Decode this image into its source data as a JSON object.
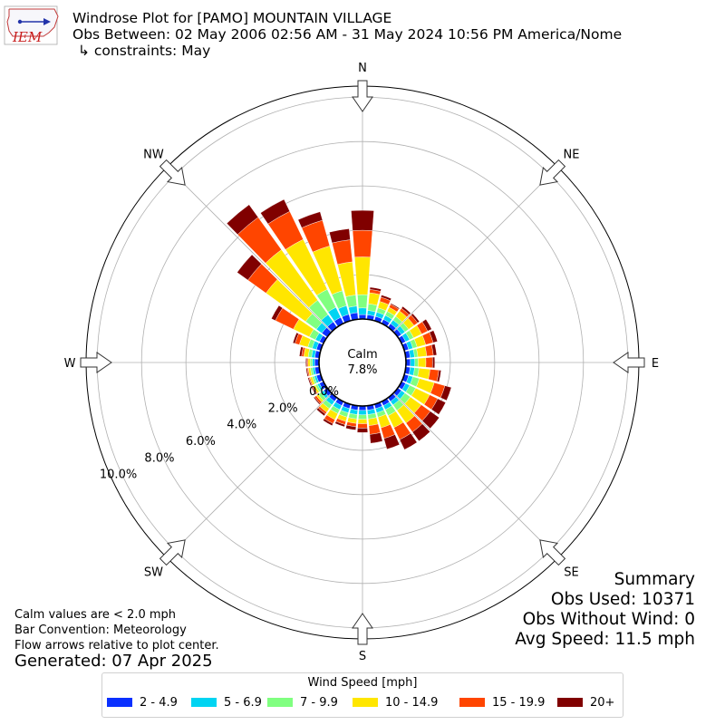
{
  "header": {
    "title_line1": "Windrose Plot for [PAMO] MOUNTAIN VILLAGE",
    "title_line2": "Obs Between: 02 May 2006 02:56 AM - 31 May 2024 10:56 PM America/Nome",
    "title_line3": "↳ constraints: May",
    "logo_text": "IEM"
  },
  "summary": {
    "heading": "Summary",
    "obs_used": "Obs Used: 10371",
    "obs_without_wind": "Obs Without Wind: 0",
    "avg_speed": "Avg Speed: 11.5 mph"
  },
  "notes": {
    "calm_note": "Calm values are < 2.0 mph",
    "bar_convention": "Bar Convention: Meteorology",
    "flow_arrows": "Flow arrows relative to plot center.",
    "generated": "Generated: 07 Apr 2025"
  },
  "chart_data": {
    "type": "windrose",
    "calm_label": "Calm",
    "calm_value": "7.8%",
    "direction_labels": [
      "N",
      "NE",
      "E",
      "SE",
      "S",
      "SW",
      "W",
      "NW"
    ],
    "radial_tick_labels": [
      "0.0%",
      "2.0%",
      "4.0%",
      "6.0%",
      "8.0%",
      "10.0%"
    ],
    "radial_ticks": [
      0,
      2,
      4,
      6,
      8,
      10
    ],
    "rmax": 10.5,
    "legend_title": "Wind Speed [mph]",
    "bins": [
      {
        "name": "2 - 4.9",
        "color": "#0a30ff"
      },
      {
        "name": "5 - 6.9",
        "color": "#00d4f2"
      },
      {
        "name": "7 - 9.9",
        "color": "#80ff80"
      },
      {
        "name": "10 - 14.9",
        "color": "#ffe600"
      },
      {
        "name": "15 - 19.9",
        "color": "#ff4500"
      },
      {
        "name": "20+",
        "color": "#800000"
      }
    ],
    "directions_deg": [
      0,
      10,
      20,
      30,
      40,
      50,
      60,
      70,
      80,
      90,
      100,
      110,
      120,
      130,
      140,
      150,
      160,
      170,
      180,
      190,
      200,
      210,
      220,
      230,
      240,
      250,
      260,
      270,
      280,
      290,
      300,
      310,
      320,
      330,
      340,
      350
    ],
    "cumulative_percent": [
      [
        0.2,
        0.5,
        1.1,
        2.8,
        4.0,
        4.9
      ],
      [
        0.2,
        0.4,
        0.7,
        1.2,
        1.35,
        1.45
      ],
      [
        0.2,
        0.4,
        0.6,
        0.9,
        1.1,
        1.2
      ],
      [
        0.2,
        0.4,
        0.6,
        0.8,
        0.95,
        1.0
      ],
      [
        0.2,
        0.4,
        0.6,
        0.9,
        1.05,
        1.15
      ],
      [
        0.2,
        0.4,
        0.6,
        0.9,
        1.1,
        1.2
      ],
      [
        0.2,
        0.4,
        0.6,
        1.0,
        1.3,
        1.5
      ],
      [
        0.2,
        0.4,
        0.6,
        1.0,
        1.35,
        1.55
      ],
      [
        0.2,
        0.4,
        0.55,
        0.95,
        1.25,
        1.4
      ],
      [
        0.2,
        0.4,
        0.55,
        0.9,
        1.2,
        1.3
      ],
      [
        0.2,
        0.4,
        0.6,
        1.1,
        1.5,
        1.6
      ],
      [
        0.2,
        0.4,
        0.7,
        1.4,
        1.9,
        2.2
      ],
      [
        0.2,
        0.4,
        0.7,
        1.4,
        1.8,
        2.2
      ],
      [
        0.2,
        0.4,
        0.7,
        1.3,
        1.8,
        2.3
      ],
      [
        0.2,
        0.4,
        0.7,
        1.4,
        1.9,
        2.4
      ],
      [
        0.2,
        0.4,
        0.7,
        1.3,
        1.9,
        2.4
      ],
      [
        0.2,
        0.4,
        0.6,
        1.1,
        1.6,
        2.1
      ],
      [
        0.2,
        0.4,
        0.6,
        0.9,
        1.3,
        1.7
      ],
      [
        0.2,
        0.4,
        0.6,
        0.8,
        1.0,
        1.2
      ],
      [
        0.2,
        0.4,
        0.6,
        0.8,
        0.95,
        1.1
      ],
      [
        0.2,
        0.4,
        0.6,
        0.8,
        0.95,
        1.05
      ],
      [
        0.2,
        0.4,
        0.6,
        0.9,
        1.1,
        1.2
      ],
      [
        0.2,
        0.4,
        0.6,
        0.8,
        0.9,
        1.0
      ],
      [
        0.2,
        0.35,
        0.5,
        0.6,
        0.7,
        0.75
      ],
      [
        0.2,
        0.3,
        0.4,
        0.5,
        0.55,
        0.6
      ],
      [
        0.2,
        0.3,
        0.4,
        0.5,
        0.55,
        0.6
      ],
      [
        0.2,
        0.3,
        0.4,
        0.5,
        0.55,
        0.6
      ],
      [
        0.2,
        0.3,
        0.4,
        0.5,
        0.55,
        0.6
      ],
      [
        0.2,
        0.35,
        0.5,
        0.7,
        0.8,
        0.9
      ],
      [
        0.2,
        0.4,
        0.6,
        1.0,
        1.2,
        1.3
      ],
      [
        0.2,
        0.4,
        0.7,
        1.5,
        2.4,
        2.6
      ],
      [
        0.3,
        0.6,
        1.2,
        3.4,
        4.4,
        5.0
      ],
      [
        0.3,
        0.7,
        1.5,
        4.3,
        6.1,
        6.8
      ],
      [
        0.3,
        0.8,
        1.7,
        4.2,
        5.6,
        6.2
      ],
      [
        0.3,
        0.7,
        1.4,
        3.5,
        4.7,
        5.1
      ],
      [
        0.3,
        0.6,
        1.1,
        2.6,
        3.6,
        4.1
      ]
    ]
  }
}
